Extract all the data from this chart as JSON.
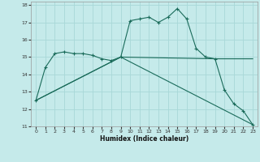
{
  "xlabel": "Humidex (Indice chaleur)",
  "bg_color": "#c5eaea",
  "grid_color": "#a8d8d8",
  "line_color": "#1a6b5a",
  "xlim": [
    -0.5,
    23.5
  ],
  "ylim": [
    11,
    18.2
  ],
  "yticks": [
    11,
    12,
    13,
    14,
    15,
    16,
    17,
    18
  ],
  "xticks": [
    0,
    1,
    2,
    3,
    4,
    5,
    6,
    7,
    8,
    9,
    10,
    11,
    12,
    13,
    14,
    15,
    16,
    17,
    18,
    19,
    20,
    21,
    22,
    23
  ],
  "series1_x": [
    0,
    1,
    2,
    3,
    4,
    5,
    6,
    7,
    8,
    9,
    10,
    11,
    12,
    13,
    14,
    15,
    16,
    17,
    18,
    19,
    20,
    21,
    22,
    23
  ],
  "series1_y": [
    12.5,
    14.4,
    15.2,
    15.3,
    15.2,
    15.2,
    15.1,
    14.9,
    14.8,
    15.0,
    17.1,
    17.2,
    17.3,
    17.0,
    17.3,
    17.8,
    17.2,
    15.5,
    15.0,
    14.9,
    13.1,
    12.3,
    11.9,
    11.1
  ],
  "series2_x": [
    0,
    9,
    23
  ],
  "series2_y": [
    12.5,
    15.0,
    11.1
  ],
  "series3_x": [
    0,
    9,
    19,
    23
  ],
  "series3_y": [
    12.5,
    15.0,
    14.9,
    14.9
  ]
}
